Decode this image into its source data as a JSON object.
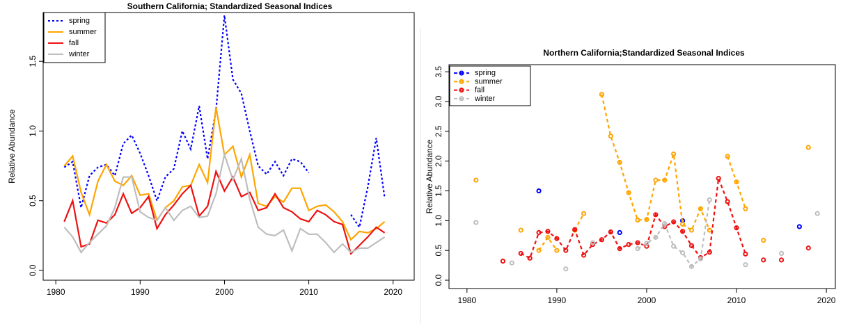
{
  "chart_data": [
    {
      "type": "line",
      "title": "Southern California; Standardized Seasonal Indices",
      "y_label": "Relative Abundance",
      "x": [
        1981,
        1982,
        1983,
        1984,
        1985,
        1986,
        1987,
        1988,
        1989,
        1990,
        1991,
        1992,
        1993,
        1994,
        1995,
        1996,
        1997,
        1998,
        1999,
        2000,
        2001,
        2002,
        2003,
        2004,
        2005,
        2006,
        2007,
        2008,
        2009,
        2010,
        2011,
        2012,
        2013,
        2014,
        2015,
        2016,
        2017,
        2018,
        2019
      ],
      "series": [
        {
          "name": "spring",
          "color": "#0000ff",
          "dash": "dotted",
          "values": [
            0.74,
            0.78,
            0.45,
            0.68,
            0.74,
            0.76,
            0.68,
            0.91,
            0.97,
            0.84,
            0.68,
            0.5,
            0.67,
            0.73,
            1.0,
            0.87,
            1.18,
            0.8,
            1.15,
            1.83,
            1.37,
            1.27,
            1.0,
            0.75,
            0.69,
            0.78,
            0.68,
            0.8,
            0.78,
            0.7,
            null,
            null,
            null,
            null,
            0.4,
            0.31,
            0.6,
            0.95,
            0.52
          ]
        },
        {
          "name": "summer",
          "color": "#ffa500",
          "dash": "solid",
          "values": [
            0.75,
            0.82,
            0.56,
            0.4,
            0.64,
            0.76,
            0.64,
            0.61,
            0.68,
            0.54,
            0.55,
            0.36,
            0.45,
            0.5,
            0.6,
            0.61,
            0.76,
            0.63,
            1.17,
            0.83,
            0.89,
            0.67,
            0.83,
            0.48,
            0.46,
            0.53,
            0.49,
            0.59,
            0.59,
            0.43,
            0.46,
            0.47,
            0.42,
            0.35,
            0.22,
            0.28,
            0.27,
            0.3,
            0.35
          ]
        },
        {
          "name": "fall",
          "color": "#ee1111",
          "dash": "solid",
          "values": [
            0.35,
            0.5,
            0.17,
            0.19,
            0.36,
            0.34,
            0.4,
            0.55,
            0.41,
            0.45,
            0.53,
            0.3,
            0.4,
            0.47,
            0.55,
            0.61,
            0.39,
            0.46,
            0.71,
            0.57,
            0.67,
            0.53,
            0.56,
            0.43,
            0.45,
            0.55,
            0.45,
            0.42,
            0.37,
            0.35,
            0.43,
            0.4,
            0.35,
            0.33,
            0.12,
            0.18,
            0.24,
            0.31,
            0.27
          ]
        },
        {
          "name": "winter",
          "color": "#bebebe",
          "dash": "solid",
          "values": [
            0.31,
            0.24,
            0.13,
            0.2,
            0.26,
            0.32,
            0.45,
            0.67,
            0.67,
            0.42,
            0.38,
            0.36,
            0.45,
            0.36,
            0.43,
            0.46,
            0.38,
            0.39,
            0.55,
            0.83,
            0.65,
            0.8,
            0.51,
            0.31,
            0.26,
            0.25,
            0.29,
            0.14,
            0.3,
            0.26,
            0.26,
            0.2,
            0.13,
            0.19,
            0.13,
            0.16,
            0.16,
            0.2,
            0.24
          ]
        }
      ],
      "xlim": [
        1978.5,
        2022.5
      ],
      "xticks": [
        1980,
        1990,
        2000,
        2010,
        2020
      ],
      "ylim": [
        -0.07,
        1.85
      ],
      "yticks": [
        {
          "value": 0,
          "label": "0.0"
        },
        0.5,
        {
          "value": 1,
          "label": "1.0"
        },
        1.5
      ],
      "markers": false,
      "legend": "upper left"
    },
    {
      "type": "line",
      "title": "Northern California;Standardized Seasonal Indices",
      "y_label": "Relative Abundance",
      "x": [
        1981,
        1982,
        1983,
        1984,
        1985,
        1986,
        1987,
        1988,
        1989,
        1990,
        1991,
        1992,
        1993,
        1994,
        1995,
        1996,
        1997,
        1998,
        1999,
        2000,
        2001,
        2002,
        2003,
        2004,
        2005,
        2006,
        2007,
        2008,
        2009,
        2010,
        2011,
        2012,
        2013,
        2014,
        2015,
        2016,
        2017,
        2018,
        2019
      ],
      "series": [
        {
          "name": "spring",
          "color": "#0000ff",
          "dash": "dashed",
          "values": [
            null,
            null,
            null,
            null,
            null,
            null,
            null,
            1.5,
            null,
            null,
            null,
            null,
            null,
            null,
            null,
            null,
            0.8,
            null,
            null,
            null,
            null,
            null,
            null,
            1.0,
            null,
            null,
            null,
            null,
            null,
            null,
            null,
            null,
            null,
            null,
            null,
            null,
            0.9,
            null,
            null
          ]
        },
        {
          "name": "summer",
          "color": "#ffa500",
          "dash": "dashed",
          "values": [
            1.68,
            null,
            null,
            null,
            null,
            0.84,
            null,
            0.5,
            0.72,
            0.5,
            null,
            0.84,
            1.12,
            null,
            3.12,
            2.42,
            1.98,
            1.47,
            1.01,
            1.02,
            1.68,
            1.68,
            2.12,
            0.94,
            0.84,
            1.2,
            0.84,
            null,
            2.08,
            1.65,
            1.2,
            null,
            0.67,
            null,
            null,
            null,
            null,
            2.23,
            null
          ]
        },
        {
          "name": "fall",
          "color": "#ee1111",
          "dash": "dashed",
          "values": [
            null,
            null,
            null,
            0.32,
            null,
            0.45,
            0.37,
            0.8,
            0.82,
            0.7,
            0.5,
            0.85,
            0.42,
            0.6,
            0.68,
            0.81,
            0.53,
            0.6,
            0.63,
            0.57,
            1.1,
            0.9,
            0.98,
            0.82,
            0.58,
            0.38,
            0.47,
            1.71,
            1.32,
            0.88,
            0.44,
            null,
            0.34,
            null,
            0.34,
            null,
            null,
            0.54,
            null
          ]
        },
        {
          "name": "winter",
          "color": "#bebebe",
          "dash": "dashed",
          "values": [
            0.97,
            null,
            null,
            null,
            0.29,
            null,
            null,
            null,
            null,
            null,
            0.19,
            null,
            null,
            0.63,
            null,
            null,
            null,
            null,
            0.53,
            0.62,
            0.72,
            0.95,
            0.57,
            0.46,
            0.23,
            0.36,
            1.35,
            null,
            null,
            null,
            0.26,
            null,
            null,
            null,
            0.45,
            null,
            null,
            null,
            1.12
          ]
        }
      ],
      "xlim": [
        1978,
        2021
      ],
      "xticks": [
        1980,
        1990,
        2000,
        2010,
        2020
      ],
      "ylim": [
        -0.14,
        3.62
      ],
      "yticks": [
        {
          "value": 0,
          "label": "0.0"
        },
        0.5,
        {
          "value": 1,
          "label": "1.0"
        },
        1.5,
        {
          "value": 2,
          "label": "2.0"
        },
        2.5,
        {
          "value": 3,
          "label": "3.0"
        },
        3.5
      ],
      "markers": true,
      "legend": "upper left"
    }
  ]
}
